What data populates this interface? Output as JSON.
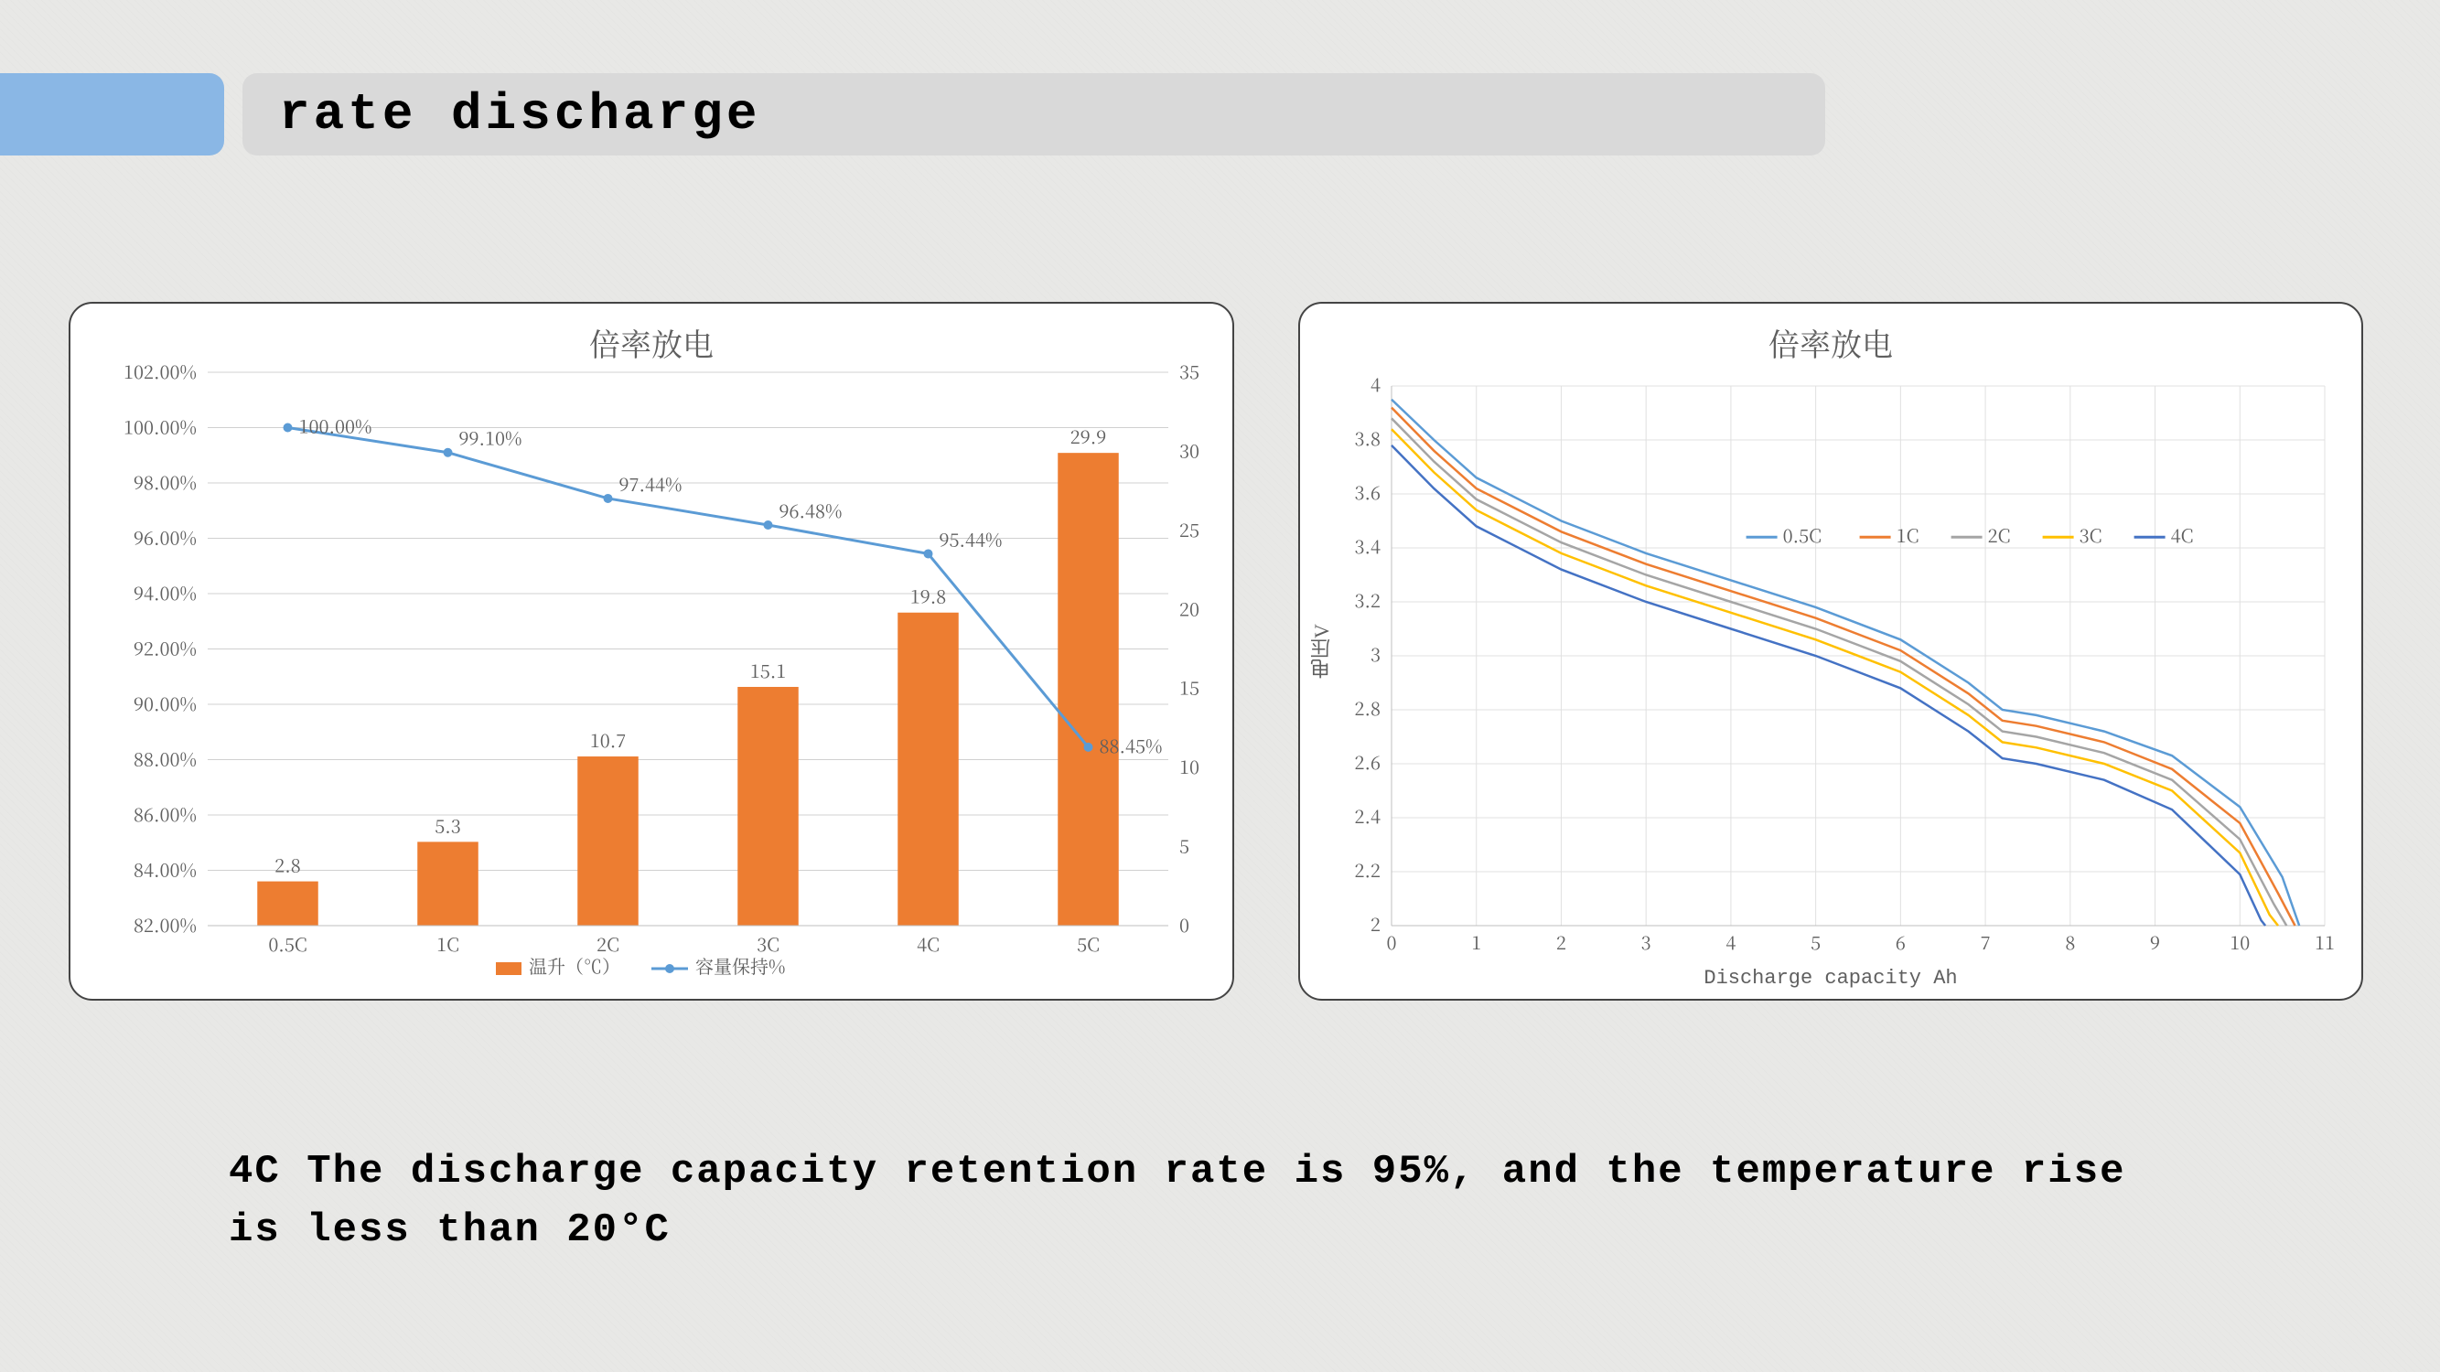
{
  "header": {
    "title": "rate discharge"
  },
  "caption": "   4C The discharge capacity retention rate is 95%, and the temperature rise is less than 20°C",
  "left_chart": {
    "type": "bar+line (dual axis)",
    "title": "倍率放电",
    "categories": [
      "0.5C",
      "1C",
      "2C",
      "3C",
      "4C",
      "5C"
    ],
    "bar_series_name": "温升（℃）",
    "bar_values": [
      2.8,
      5.3,
      10.7,
      15.1,
      19.8,
      29.9
    ],
    "bar_color": "#ed7d31",
    "bar_width_ratio": 0.38,
    "line_series_name": "容量保持%",
    "line_values": [
      100.0,
      99.1,
      97.44,
      96.48,
      95.44,
      88.45
    ],
    "line_value_labels": [
      "100.00%",
      "99.10%",
      "97.44%",
      "96.48%",
      "95.44%",
      "88.45%"
    ],
    "line_color": "#5b9bd5",
    "marker_radius": 5,
    "y_left": {
      "min": 82,
      "max": 102,
      "step": 2,
      "tick_labels": [
        "82.00%",
        "84.00%",
        "86.00%",
        "88.00%",
        "90.00%",
        "92.00%",
        "94.00%",
        "96.00%",
        "98.00%",
        "100.00%",
        "102.00%"
      ]
    },
    "y_right": {
      "min": 0,
      "max": 35,
      "step": 5,
      "tick_labels": [
        "0",
        "5",
        "10",
        "15",
        "20",
        "25",
        "30",
        "35"
      ]
    },
    "grid_color": "#d0d0d0",
    "background_color": "#ffffff",
    "tick_font_size": 20,
    "title_font_size": 34
  },
  "right_chart": {
    "type": "line",
    "title": "倍率放电",
    "x_label": "Discharge capacity Ah",
    "y_label": "电压V",
    "x": {
      "min": 0,
      "max": 11,
      "step": 1,
      "tick_labels": [
        "0",
        "1",
        "2",
        "3",
        "4",
        "5",
        "6",
        "7",
        "8",
        "9",
        "10",
        "11"
      ]
    },
    "y": {
      "min": 2,
      "max": 4,
      "step": 0.2,
      "tick_labels": [
        "2",
        "2.2",
        "2.4",
        "2.6",
        "2.8",
        "3",
        "3.2",
        "3.4",
        "3.6",
        "3.8",
        "4"
      ]
    },
    "legend_position": "inside-center",
    "grid_color": "#e0e0e0",
    "background_color": "#ffffff",
    "line_width": 2.5,
    "series": [
      {
        "name": "0.5C",
        "color": "#5b9bd5",
        "points": [
          [
            0,
            3.95
          ],
          [
            0.5,
            3.8
          ],
          [
            1,
            3.66
          ],
          [
            2,
            3.5
          ],
          [
            3,
            3.38
          ],
          [
            4,
            3.28
          ],
          [
            5,
            3.18
          ],
          [
            6,
            3.06
          ],
          [
            6.8,
            2.9
          ],
          [
            7.2,
            2.8
          ],
          [
            7.6,
            2.78
          ],
          [
            8.4,
            2.72
          ],
          [
            9.2,
            2.63
          ],
          [
            10.0,
            2.44
          ],
          [
            10.5,
            2.18
          ],
          [
            10.7,
            2.0
          ]
        ]
      },
      {
        "name": "1C",
        "color": "#ed7d31",
        "points": [
          [
            0,
            3.92
          ],
          [
            0.5,
            3.76
          ],
          [
            1,
            3.62
          ],
          [
            2,
            3.46
          ],
          [
            3,
            3.34
          ],
          [
            4,
            3.24
          ],
          [
            5,
            3.14
          ],
          [
            6,
            3.02
          ],
          [
            6.8,
            2.86
          ],
          [
            7.2,
            2.76
          ],
          [
            7.6,
            2.74
          ],
          [
            8.4,
            2.68
          ],
          [
            9.2,
            2.58
          ],
          [
            10.0,
            2.38
          ],
          [
            10.45,
            2.12
          ],
          [
            10.65,
            2.0
          ]
        ]
      },
      {
        "name": "2C",
        "color": "#a5a5a5",
        "points": [
          [
            0,
            3.88
          ],
          [
            0.5,
            3.72
          ],
          [
            1,
            3.58
          ],
          [
            2,
            3.42
          ],
          [
            3,
            3.3
          ],
          [
            4,
            3.2
          ],
          [
            5,
            3.1
          ],
          [
            6,
            2.98
          ],
          [
            6.8,
            2.82
          ],
          [
            7.2,
            2.72
          ],
          [
            7.6,
            2.7
          ],
          [
            8.4,
            2.64
          ],
          [
            9.2,
            2.54
          ],
          [
            10.0,
            2.32
          ],
          [
            10.4,
            2.08
          ],
          [
            10.55,
            2.0
          ]
        ]
      },
      {
        "name": "3C",
        "color": "#ffc000",
        "points": [
          [
            0,
            3.84
          ],
          [
            0.5,
            3.68
          ],
          [
            1,
            3.54
          ],
          [
            2,
            3.38
          ],
          [
            3,
            3.26
          ],
          [
            4,
            3.16
          ],
          [
            5,
            3.06
          ],
          [
            6,
            2.94
          ],
          [
            6.8,
            2.78
          ],
          [
            7.2,
            2.68
          ],
          [
            7.6,
            2.66
          ],
          [
            8.4,
            2.6
          ],
          [
            9.2,
            2.5
          ],
          [
            10.0,
            2.27
          ],
          [
            10.35,
            2.04
          ],
          [
            10.45,
            2.0
          ]
        ]
      },
      {
        "name": "4C",
        "color": "#4472c4",
        "points": [
          [
            0,
            3.78
          ],
          [
            0.5,
            3.62
          ],
          [
            1,
            3.48
          ],
          [
            2,
            3.32
          ],
          [
            3,
            3.2
          ],
          [
            4,
            3.1
          ],
          [
            5,
            3.0
          ],
          [
            6,
            2.88
          ],
          [
            6.8,
            2.72
          ],
          [
            7.2,
            2.62
          ],
          [
            7.6,
            2.6
          ],
          [
            8.4,
            2.54
          ],
          [
            9.2,
            2.43
          ],
          [
            10.0,
            2.19
          ],
          [
            10.25,
            2.02
          ],
          [
            10.3,
            2.0
          ]
        ]
      }
    ]
  }
}
